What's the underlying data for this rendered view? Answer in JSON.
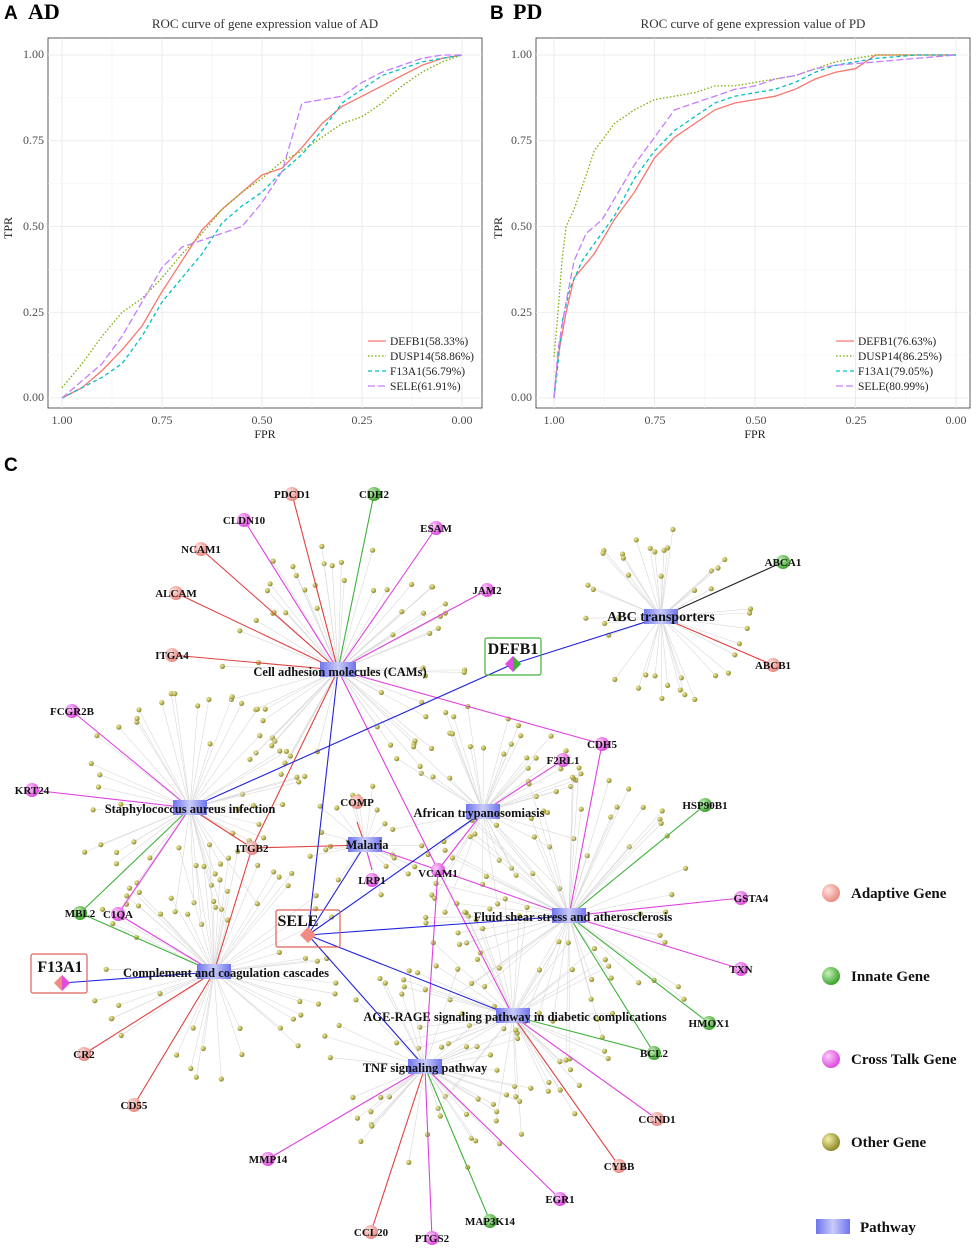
{
  "panels": {
    "a": {
      "letter": "A",
      "title": "AD"
    },
    "b": {
      "letter": "B",
      "title": "PD"
    },
    "c": {
      "letter": "C"
    }
  },
  "chart_data": [
    {
      "type": "line",
      "title": "ROC curve of gene expression value of AD",
      "xlabel": "FPR",
      "ylabel": "TPR",
      "xlim": [
        1.0,
        0.0
      ],
      "ylim": [
        0.0,
        1.0
      ],
      "xticks": [
        "1.00",
        "0.75",
        "0.50",
        "0.25",
        "0.00"
      ],
      "yticks": [
        "0.00",
        "0.25",
        "0.50",
        "0.75",
        "1.00"
      ],
      "legend_position": "bottom-right",
      "series": [
        {
          "name": "DEFB1(58.33%)",
          "color": "#f8766d",
          "dash": "solid",
          "points": [
            [
              1.0,
              0.0
            ],
            [
              0.95,
              0.03
            ],
            [
              0.9,
              0.08
            ],
            [
              0.85,
              0.14
            ],
            [
              0.8,
              0.21
            ],
            [
              0.75,
              0.31
            ],
            [
              0.7,
              0.4
            ],
            [
              0.65,
              0.49
            ],
            [
              0.6,
              0.55
            ],
            [
              0.55,
              0.6
            ],
            [
              0.5,
              0.65
            ],
            [
              0.45,
              0.67
            ],
            [
              0.4,
              0.73
            ],
            [
              0.35,
              0.8
            ],
            [
              0.3,
              0.85
            ],
            [
              0.25,
              0.88
            ],
            [
              0.2,
              0.91
            ],
            [
              0.15,
              0.94
            ],
            [
              0.1,
              0.97
            ],
            [
              0.05,
              0.99
            ],
            [
              0.0,
              1.0
            ]
          ]
        },
        {
          "name": "DUSP14(58.86%)",
          "color": "#7cae00",
          "dash": "dotted",
          "points": [
            [
              1.0,
              0.03
            ],
            [
              0.95,
              0.1
            ],
            [
              0.9,
              0.18
            ],
            [
              0.85,
              0.25
            ],
            [
              0.8,
              0.29
            ],
            [
              0.75,
              0.35
            ],
            [
              0.7,
              0.42
            ],
            [
              0.65,
              0.48
            ],
            [
              0.6,
              0.55
            ],
            [
              0.55,
              0.6
            ],
            [
              0.5,
              0.64
            ],
            [
              0.45,
              0.69
            ],
            [
              0.4,
              0.72
            ],
            [
              0.35,
              0.76
            ],
            [
              0.3,
              0.8
            ],
            [
              0.25,
              0.82
            ],
            [
              0.2,
              0.86
            ],
            [
              0.15,
              0.91
            ],
            [
              0.1,
              0.95
            ],
            [
              0.05,
              0.98
            ],
            [
              0.0,
              1.0
            ]
          ]
        },
        {
          "name": "F13A1(56.79%)",
          "color": "#00bfc4",
          "dash": "dashed",
          "points": [
            [
              1.0,
              0.0
            ],
            [
              0.95,
              0.03
            ],
            [
              0.9,
              0.06
            ],
            [
              0.85,
              0.1
            ],
            [
              0.8,
              0.18
            ],
            [
              0.75,
              0.28
            ],
            [
              0.7,
              0.35
            ],
            [
              0.65,
              0.42
            ],
            [
              0.6,
              0.51
            ],
            [
              0.55,
              0.56
            ],
            [
              0.5,
              0.6
            ],
            [
              0.45,
              0.66
            ],
            [
              0.4,
              0.71
            ],
            [
              0.35,
              0.78
            ],
            [
              0.3,
              0.86
            ],
            [
              0.25,
              0.9
            ],
            [
              0.2,
              0.94
            ],
            [
              0.15,
              0.96
            ],
            [
              0.1,
              0.98
            ],
            [
              0.05,
              0.99
            ],
            [
              0.0,
              1.0
            ]
          ]
        },
        {
          "name": "SELE(61.91%)",
          "color": "#c77cff",
          "dash": "longdash",
          "points": [
            [
              1.0,
              0.0
            ],
            [
              0.95,
              0.05
            ],
            [
              0.9,
              0.1
            ],
            [
              0.85,
              0.18
            ],
            [
              0.8,
              0.28
            ],
            [
              0.75,
              0.38
            ],
            [
              0.7,
              0.44
            ],
            [
              0.65,
              0.46
            ],
            [
              0.6,
              0.48
            ],
            [
              0.55,
              0.5
            ],
            [
              0.5,
              0.57
            ],
            [
              0.45,
              0.66
            ],
            [
              0.4,
              0.86
            ],
            [
              0.35,
              0.87
            ],
            [
              0.3,
              0.88
            ],
            [
              0.25,
              0.92
            ],
            [
              0.2,
              0.95
            ],
            [
              0.15,
              0.97
            ],
            [
              0.1,
              0.99
            ],
            [
              0.05,
              1.0
            ],
            [
              0.0,
              1.0
            ]
          ]
        }
      ]
    },
    {
      "type": "line",
      "title": "ROC curve of gene expression value of PD",
      "xlabel": "FPR",
      "ylabel": "TPR",
      "xlim": [
        1.0,
        0.0
      ],
      "ylim": [
        0.0,
        1.0
      ],
      "xticks": [
        "1.00",
        "0.75",
        "0.50",
        "0.25",
        "0.00"
      ],
      "yticks": [
        "0.00",
        "0.25",
        "0.50",
        "0.75",
        "1.00"
      ],
      "legend_position": "bottom-right",
      "series": [
        {
          "name": "DEFB1(76.63%)",
          "color": "#f8766d",
          "dash": "solid",
          "points": [
            [
              1.0,
              0.0
            ],
            [
              0.99,
              0.12
            ],
            [
              0.97,
              0.25
            ],
            [
              0.95,
              0.35
            ],
            [
              0.9,
              0.42
            ],
            [
              0.85,
              0.52
            ],
            [
              0.8,
              0.6
            ],
            [
              0.75,
              0.7
            ],
            [
              0.7,
              0.76
            ],
            [
              0.65,
              0.8
            ],
            [
              0.6,
              0.84
            ],
            [
              0.55,
              0.86
            ],
            [
              0.5,
              0.87
            ],
            [
              0.45,
              0.88
            ],
            [
              0.4,
              0.9
            ],
            [
              0.35,
              0.93
            ],
            [
              0.3,
              0.95
            ],
            [
              0.25,
              0.96
            ],
            [
              0.2,
              1.0
            ],
            [
              0.1,
              1.0
            ],
            [
              0.0,
              1.0
            ]
          ]
        },
        {
          "name": "DUSP14(86.25%)",
          "color": "#7cae00",
          "dash": "dotted",
          "points": [
            [
              1.0,
              0.12
            ],
            [
              0.99,
              0.25
            ],
            [
              0.98,
              0.4
            ],
            [
              0.97,
              0.5
            ],
            [
              0.95,
              0.55
            ],
            [
              0.92,
              0.65
            ],
            [
              0.9,
              0.72
            ],
            [
              0.85,
              0.8
            ],
            [
              0.8,
              0.84
            ],
            [
              0.75,
              0.87
            ],
            [
              0.7,
              0.88
            ],
            [
              0.65,
              0.89
            ],
            [
              0.6,
              0.91
            ],
            [
              0.55,
              0.91
            ],
            [
              0.5,
              0.92
            ],
            [
              0.45,
              0.93
            ],
            [
              0.4,
              0.94
            ],
            [
              0.35,
              0.96
            ],
            [
              0.3,
              0.98
            ],
            [
              0.2,
              1.0
            ],
            [
              0.0,
              1.0
            ]
          ]
        },
        {
          "name": "F13A1(79.05%)",
          "color": "#00bfc4",
          "dash": "dashed",
          "points": [
            [
              1.0,
              0.0
            ],
            [
              0.99,
              0.1
            ],
            [
              0.98,
              0.22
            ],
            [
              0.96,
              0.32
            ],
            [
              0.93,
              0.4
            ],
            [
              0.9,
              0.45
            ],
            [
              0.85,
              0.53
            ],
            [
              0.8,
              0.64
            ],
            [
              0.75,
              0.72
            ],
            [
              0.7,
              0.78
            ],
            [
              0.65,
              0.82
            ],
            [
              0.6,
              0.86
            ],
            [
              0.55,
              0.88
            ],
            [
              0.5,
              0.89
            ],
            [
              0.45,
              0.9
            ],
            [
              0.4,
              0.92
            ],
            [
              0.35,
              0.95
            ],
            [
              0.3,
              0.97
            ],
            [
              0.2,
              0.99
            ],
            [
              0.1,
              1.0
            ],
            [
              0.0,
              1.0
            ]
          ]
        },
        {
          "name": "SELE(80.99%)",
          "color": "#c77cff",
          "dash": "longdash",
          "points": [
            [
              1.0,
              0.0
            ],
            [
              0.99,
              0.14
            ],
            [
              0.97,
              0.28
            ],
            [
              0.95,
              0.4
            ],
            [
              0.92,
              0.48
            ],
            [
              0.88,
              0.52
            ],
            [
              0.85,
              0.58
            ],
            [
              0.8,
              0.68
            ],
            [
              0.75,
              0.76
            ],
            [
              0.7,
              0.84
            ],
            [
              0.65,
              0.86
            ],
            [
              0.6,
              0.88
            ],
            [
              0.55,
              0.9
            ],
            [
              0.5,
              0.91
            ],
            [
              0.45,
              0.93
            ],
            [
              0.4,
              0.94
            ],
            [
              0.35,
              0.96
            ],
            [
              0.3,
              0.97
            ],
            [
              0.2,
              0.98
            ],
            [
              0.1,
              0.99
            ],
            [
              0.0,
              1.0
            ]
          ]
        }
      ]
    }
  ],
  "network": {
    "hubs": [
      {
        "id": "SELE",
        "label": "SELE"
      },
      {
        "id": "DEFB1",
        "label": "DEFB1"
      },
      {
        "id": "F13A1",
        "label": "F13A1"
      }
    ],
    "pathways": [
      {
        "id": "cam",
        "label": "Cell adhesion molecules (CAMs)"
      },
      {
        "id": "abc",
        "label": "ABC transporters"
      },
      {
        "id": "staph",
        "label": "Staphylococcus aureus infection"
      },
      {
        "id": "afr",
        "label": "African trypanosomiasis"
      },
      {
        "id": "mal",
        "label": "Malaria"
      },
      {
        "id": "fluid",
        "label": "Fluid shear stress and atherosclerosis"
      },
      {
        "id": "comp",
        "label": "Complement and coagulation cascades"
      },
      {
        "id": "age",
        "label": "AGE-RAGE signaling pathway in diabetic complications"
      },
      {
        "id": "tnf",
        "label": "TNF signaling pathway"
      }
    ],
    "genes": [
      {
        "label": "PDCD1",
        "type": "adaptive"
      },
      {
        "label": "CDH2",
        "type": "innate"
      },
      {
        "label": "CLDN10",
        "type": "cross"
      },
      {
        "label": "ESAM",
        "type": "cross"
      },
      {
        "label": "NCAM1",
        "type": "adaptive"
      },
      {
        "label": "JAM2",
        "type": "cross"
      },
      {
        "label": "ALCAM",
        "type": "adaptive"
      },
      {
        "label": "ITGA4",
        "type": "adaptive"
      },
      {
        "label": "ABCA1",
        "type": "innate"
      },
      {
        "label": "ABCB1",
        "type": "adaptive"
      },
      {
        "label": "FCGR2B",
        "type": "cross"
      },
      {
        "label": "CDH5",
        "type": "cross"
      },
      {
        "label": "F2RL1",
        "type": "cross"
      },
      {
        "label": "KRT24",
        "type": "cross"
      },
      {
        "label": "COMP",
        "type": "adaptive"
      },
      {
        "label": "HSP90B1",
        "type": "innate"
      },
      {
        "label": "ITGB2",
        "type": "adaptive"
      },
      {
        "label": "LRP1",
        "type": "cross"
      },
      {
        "label": "VCAM1",
        "type": "cross"
      },
      {
        "label": "GSTA4",
        "type": "cross"
      },
      {
        "label": "MBL2",
        "type": "innate"
      },
      {
        "label": "C1QA",
        "type": "cross"
      },
      {
        "label": "TXN",
        "type": "cross"
      },
      {
        "label": "HMOX1",
        "type": "innate"
      },
      {
        "label": "CR2",
        "type": "adaptive"
      },
      {
        "label": "BCL2",
        "type": "innate"
      },
      {
        "label": "CD55",
        "type": "adaptive"
      },
      {
        "label": "CCND1",
        "type": "adaptive"
      },
      {
        "label": "CYBB",
        "type": "adaptive"
      },
      {
        "label": "MMP14",
        "type": "cross"
      },
      {
        "label": "EGR1",
        "type": "cross"
      },
      {
        "label": "MAP3K14",
        "type": "innate"
      },
      {
        "label": "CCL20",
        "type": "adaptive"
      },
      {
        "label": "PTGS2",
        "type": "cross"
      }
    ],
    "legend": [
      {
        "label": "Adaptive Gene",
        "color": "#f4a5a0"
      },
      {
        "label": "Innate Gene",
        "color": "#6ec45a"
      },
      {
        "label": "Cross Talk Gene",
        "color": "#ef6bef"
      },
      {
        "label": "Other Gene",
        "color": "#b8b048"
      },
      {
        "label": "Pathway",
        "color": "#8a8ff2"
      }
    ]
  }
}
